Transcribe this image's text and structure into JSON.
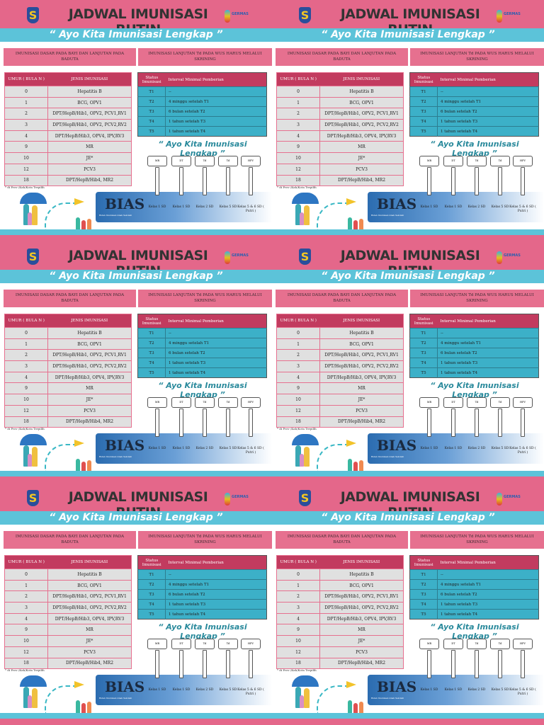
{
  "poster": {
    "title": "JADWAL IMUNISASI RUTIN",
    "tagline": "“ Ayo Kita Imunisasi Lengkap ”",
    "logo_left": "S",
    "logo_right": "GERMAS",
    "section_left": "IMUNISASI DASAR PADA BAYI DAN LANJUTAN PADA BADUTA",
    "section_right": "IMUNISASI LANJUTAN Td PADA WUS HARUS MELALUI SKRINING",
    "basic_table": {
      "headers": [
        "UMUR ( BULA N )",
        "JENIS IMUNISASI"
      ],
      "rows": [
        [
          "0",
          "Hepatitis B"
        ],
        [
          "1",
          "BCG, OPV1"
        ],
        [
          "2",
          "DPT/HepB/Hib1, OPV2, PCV1,RV1"
        ],
        [
          "3",
          "DPT/HepB/Hib1, OPV2, PCV2,RV2"
        ],
        [
          "4",
          "DPT/HepB/Hib3, OPV4, IPV,RV3"
        ],
        [
          "9",
          "MR"
        ],
        [
          "10",
          "JE*"
        ],
        [
          "12",
          "PCV3"
        ],
        [
          "18",
          "DPT/HepB/Hib4, MR2"
        ]
      ]
    },
    "td_table": {
      "headers": [
        "Status Imunisasi",
        "Interval Minimal Pemberian"
      ],
      "rows": [
        [
          "T1",
          "--"
        ],
        [
          "T2",
          "4 minggu setelah T1"
        ],
        [
          "T3",
          "6 bulan setelah T2"
        ],
        [
          "T4",
          "1 tahun setelah T3"
        ],
        [
          "T5",
          "1 tahun setelah T4"
        ]
      ]
    },
    "tagline2": "“ Ayo Kita Imunisasi Lengkap ”",
    "footnote": "* di Prov /Kab/Kota Terpilih",
    "bias": {
      "title": "BIAS",
      "subtitle": "Bulan Imunisasi Anak Sekolah"
    },
    "vaccines": [
      {
        "name": "MR",
        "class": "Kelas 1 SD"
      },
      {
        "name": "DT",
        "class": "Kelas 1 SD"
      },
      {
        "name": "Td",
        "class": "Kelas 2 SD"
      },
      {
        "name": "Td",
        "class": "Kelas 5 SD"
      },
      {
        "name": "HPV",
        "class": "Kelas 5 & 6 SD ( Putri )"
      }
    ],
    "colors": {
      "pink": "#e4678a",
      "cyan": "#5cc3d9",
      "dark_pink": "#c23b5f",
      "teal_row": "#3cb0c8"
    }
  },
  "copies": 6
}
